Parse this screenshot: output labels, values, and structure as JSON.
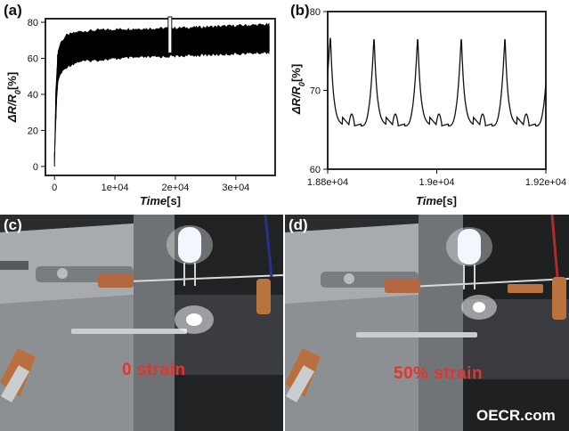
{
  "panels": {
    "a": "(a)",
    "b": "(b)",
    "c": "(c)",
    "d": "(d)"
  },
  "chart_data": [
    {
      "type": "line",
      "panel": "(a)",
      "xlabel_main": "Time",
      "xlabel_unit": "[s]",
      "ylabel_main": "ΔR/R",
      "ylabel_sub": "0",
      "ylabel_unit": "[%]",
      "xlim": [
        -1500,
        36500
      ],
      "ylim": [
        -5,
        82
      ],
      "x_ticks": [
        0,
        10000,
        20000,
        30000
      ],
      "x_tick_labels": [
        "0",
        "1e+04",
        "2e+04",
        "3e+04"
      ],
      "y_ticks": [
        0,
        20,
        40,
        60,
        80
      ],
      "y_tick_labels": [
        "0",
        "20",
        "40",
        "60",
        "80"
      ],
      "envelope_x": [
        0,
        200,
        500,
        1000,
        2000,
        4000,
        8000,
        12000,
        20000,
        28000,
        35500
      ],
      "envelope_upper": [
        8,
        40,
        62,
        68,
        72,
        74,
        75,
        75.5,
        76,
        77,
        78
      ],
      "envelope_lower": [
        0,
        22,
        47,
        52,
        56,
        59,
        60,
        61,
        62,
        63,
        64
      ],
      "zoom_box": {
        "x": [
          18800,
          19200
        ],
        "y": [
          63,
          83
        ]
      }
    },
    {
      "type": "line",
      "panel": "(b)",
      "xlabel_main": "Time",
      "xlabel_unit": "[s]",
      "ylabel_main": "ΔR/R",
      "ylabel_sub": "0",
      "ylabel_unit": "[%]",
      "xlim": [
        18800,
        19200
      ],
      "ylim": [
        60,
        80
      ],
      "x_ticks": [
        18800,
        19000,
        19200
      ],
      "x_tick_labels": [
        "1.88e+04",
        "1.9e+04",
        "1.92e+04"
      ],
      "y_ticks": [
        60,
        70,
        80
      ],
      "y_tick_labels": [
        "60",
        "70",
        "80"
      ],
      "period": 80,
      "peak_x": [
        18805,
        18885,
        18965,
        19045,
        19125
      ],
      "peak_value": 77,
      "trough_value": 65.5,
      "shoulder_value": 67
    }
  ],
  "photos": {
    "c": {
      "strain_label": "0 strain"
    },
    "d": {
      "strain_label": "50% strain",
      "watermark": "OECR.com"
    }
  }
}
